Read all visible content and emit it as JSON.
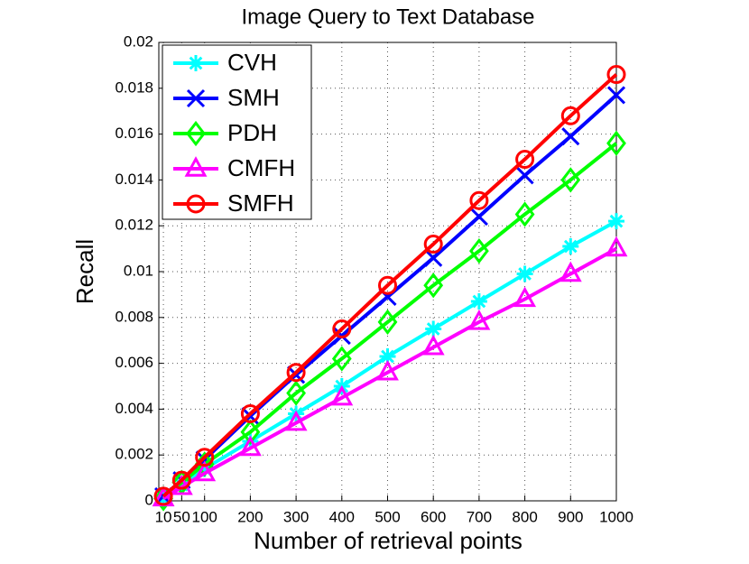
{
  "chart_data": {
    "type": "line",
    "title": "Image Query to Text Database",
    "xlabel": "Number of retrieval points",
    "ylabel": "Recall",
    "x": [
      10,
      50,
      100,
      200,
      300,
      400,
      500,
      600,
      700,
      800,
      900,
      1000
    ],
    "xlim": [
      0,
      1000
    ],
    "xticks": [
      10,
      50,
      100,
      200,
      300,
      400,
      500,
      600,
      700,
      800,
      900,
      1000
    ],
    "ylim": [
      0,
      0.02
    ],
    "yticks": [
      0,
      0.002,
      0.004,
      0.006,
      0.008,
      0.01,
      0.012,
      0.014,
      0.016,
      0.018,
      0.02
    ],
    "grid": true,
    "legend": "upper left",
    "series": [
      {
        "name": "CVH",
        "color": "#00ffff",
        "marker": "asterisk",
        "values": [
          0.0001,
          0.0007,
          0.0014,
          0.0026,
          0.0038,
          0.005,
          0.0063,
          0.0075,
          0.0087,
          0.0099,
          0.0111,
          0.0122
        ]
      },
      {
        "name": "SMH",
        "color": "#0000ff",
        "marker": "x",
        "values": [
          0.0002,
          0.0009,
          0.0018,
          0.0037,
          0.0055,
          0.0072,
          0.0089,
          0.0106,
          0.0124,
          0.0142,
          0.0159,
          0.0177
        ]
      },
      {
        "name": "PDH",
        "color": "#00ff00",
        "marker": "diamond",
        "values": [
          0.0001,
          0.0008,
          0.0016,
          0.003,
          0.0047,
          0.0062,
          0.0078,
          0.0094,
          0.0109,
          0.0125,
          0.014,
          0.0156
        ]
      },
      {
        "name": "CMFH",
        "color": "#ff00ff",
        "marker": "triangle",
        "values": [
          0.0001,
          0.0006,
          0.0012,
          0.0023,
          0.0034,
          0.0045,
          0.0056,
          0.0067,
          0.0078,
          0.0088,
          0.0099,
          0.011
        ]
      },
      {
        "name": "SMFH",
        "color": "#ff0000",
        "marker": "circle",
        "values": [
          0.0002,
          0.0009,
          0.0019,
          0.0038,
          0.0056,
          0.0075,
          0.0094,
          0.0112,
          0.0131,
          0.0149,
          0.0168,
          0.0186
        ]
      }
    ]
  }
}
